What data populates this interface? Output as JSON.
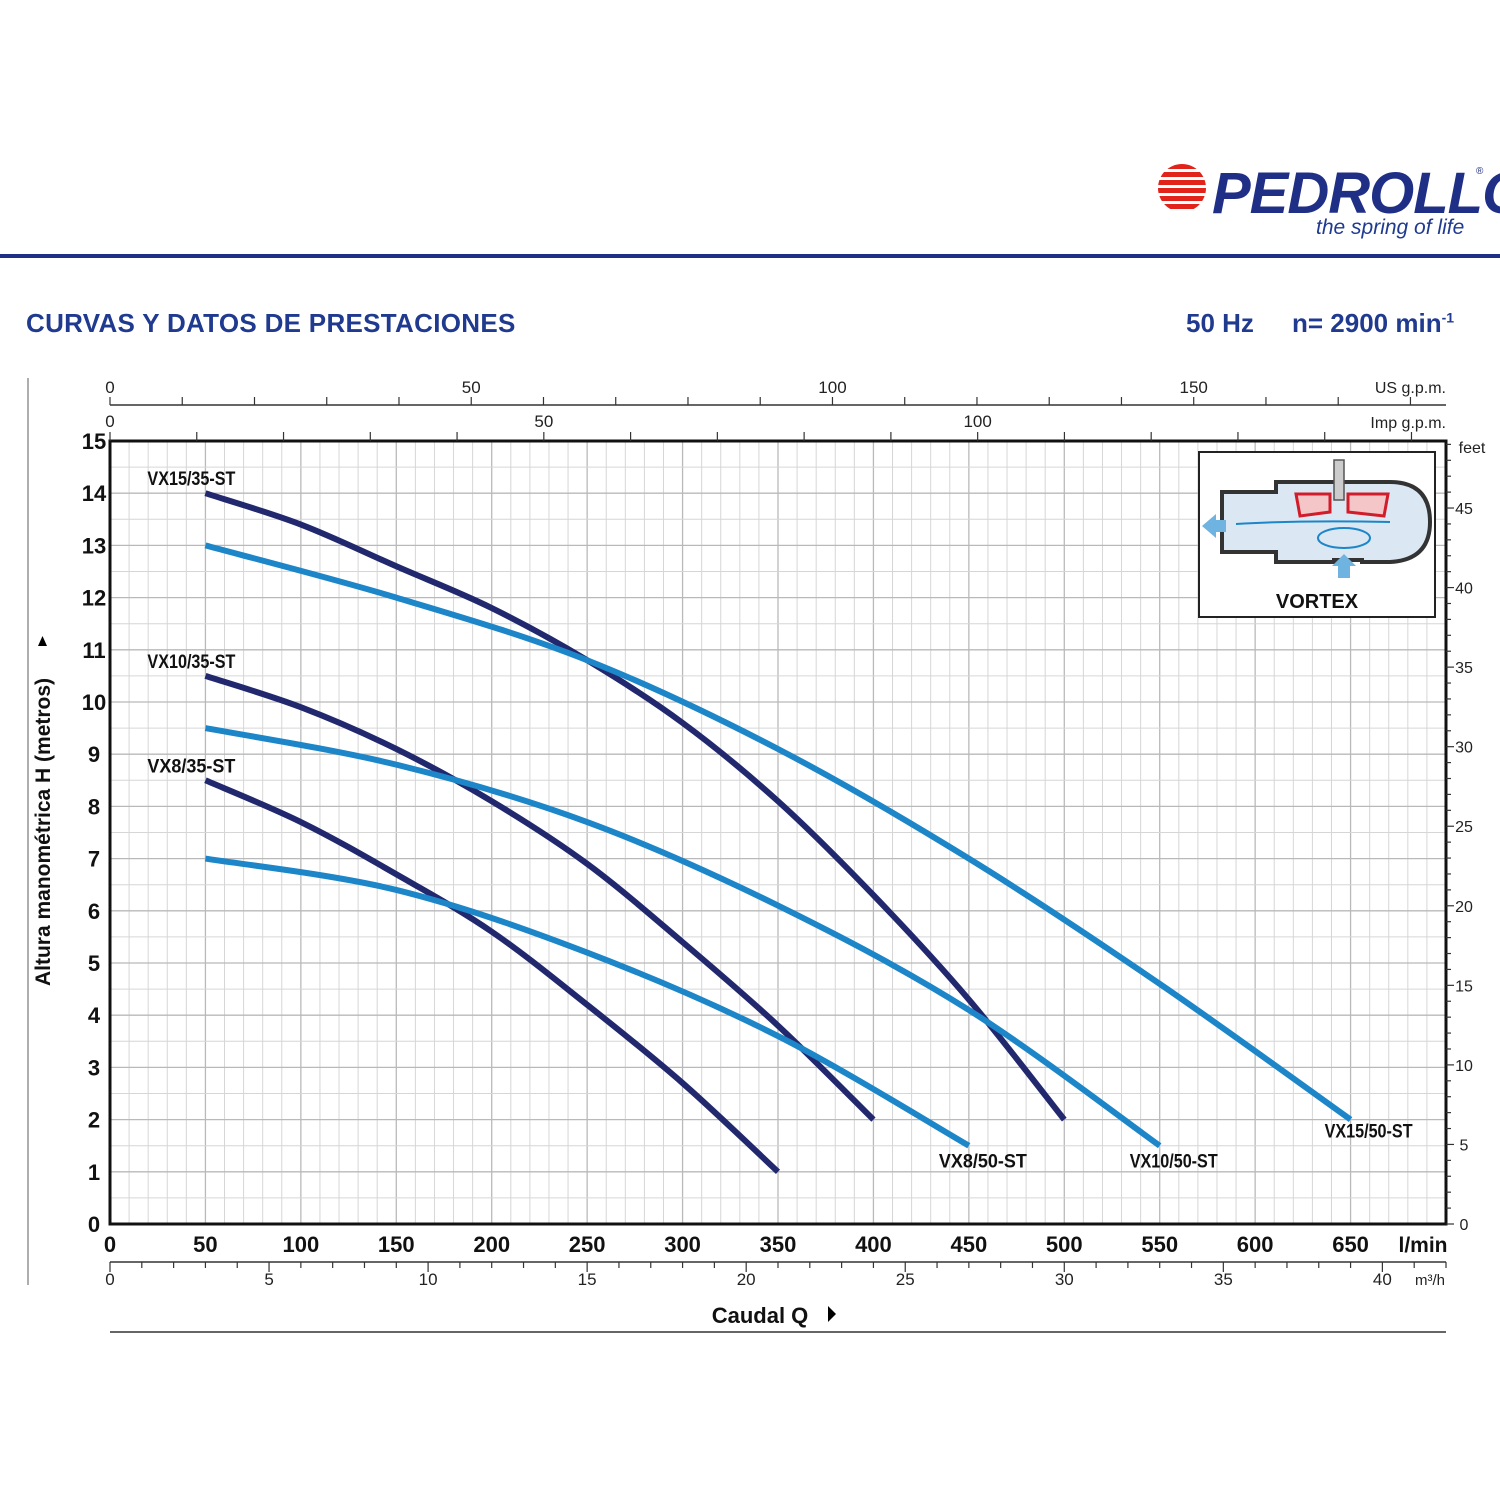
{
  "header": {
    "brand": "PEDROLLO",
    "registered": "®",
    "tagline": "the spring of life",
    "section_title": "CURVAS Y DATOS DE PRESTACIONES",
    "frequency": "50 Hz",
    "speed": "n= 2900 min",
    "speed_exp": "-1"
  },
  "colors": {
    "brand_blue": "#1f2f86",
    "curve_35": "#22286e",
    "curve_50": "#1c86c8",
    "logo_red": "#e2231a"
  },
  "chart_data": {
    "type": "line",
    "ylabel": "Altura manométrica H (metros)",
    "xlabel": "Caudal Q",
    "x_units": "l/min",
    "y_units": "metros",
    "xlim": [
      0,
      700
    ],
    "ylim": [
      0,
      15
    ],
    "grid": true,
    "x_ticks": [
      0,
      50,
      100,
      150,
      200,
      250,
      300,
      350,
      400,
      450,
      500,
      550,
      600,
      650
    ],
    "y_ticks": [
      0,
      1,
      2,
      3,
      4,
      5,
      6,
      7,
      8,
      9,
      10,
      11,
      12,
      13,
      14,
      15
    ],
    "secondary_axes": {
      "us_gpm": {
        "label": "US g.p.m.",
        "ticks": [
          0,
          50,
          100,
          150
        ]
      },
      "imp_gpm": {
        "label": "Imp g.p.m.",
        "ticks": [
          0,
          50,
          100
        ]
      },
      "m3h": {
        "label": "m³/h",
        "ticks": [
          0,
          5,
          10,
          15,
          20,
          25,
          30,
          35,
          40
        ]
      },
      "feet": {
        "label": "feet",
        "ticks": [
          0,
          5,
          10,
          15,
          20,
          25,
          30,
          35,
          40,
          45
        ]
      }
    },
    "series": [
      {
        "name": "VX15/35-ST",
        "group": "35",
        "x": [
          50,
          100,
          150,
          200,
          250,
          300,
          350,
          400,
          450,
          500
        ],
        "y": [
          14.0,
          13.4,
          12.6,
          11.8,
          10.8,
          9.6,
          8.1,
          6.3,
          4.3,
          2.0
        ]
      },
      {
        "name": "VX10/35-ST",
        "group": "35",
        "x": [
          50,
          100,
          150,
          200,
          250,
          300,
          350,
          400
        ],
        "y": [
          10.5,
          9.9,
          9.1,
          8.1,
          6.9,
          5.4,
          3.8,
          2.0
        ]
      },
      {
        "name": "VX8/35-ST",
        "group": "35",
        "x": [
          50,
          100,
          150,
          200,
          250,
          300,
          350
        ],
        "y": [
          8.5,
          7.7,
          6.7,
          5.6,
          4.2,
          2.7,
          1.0
        ]
      },
      {
        "name": "VX15/50-ST",
        "group": "50",
        "x": [
          50,
          150,
          250,
          350,
          450,
          550,
          650
        ],
        "y": [
          13.0,
          12.0,
          10.8,
          9.1,
          7.0,
          4.6,
          2.0
        ]
      },
      {
        "name": "VX10/50-ST",
        "group": "50",
        "x": [
          50,
          150,
          250,
          350,
          450,
          550
        ],
        "y": [
          9.5,
          8.8,
          7.7,
          6.1,
          4.1,
          1.5
        ]
      },
      {
        "name": "VX8/50-ST",
        "group": "50",
        "x": [
          50,
          150,
          250,
          350,
          450
        ],
        "y": [
          7.0,
          6.4,
          5.2,
          3.6,
          1.5
        ]
      }
    ]
  },
  "inset": {
    "label": "VORTEX"
  }
}
